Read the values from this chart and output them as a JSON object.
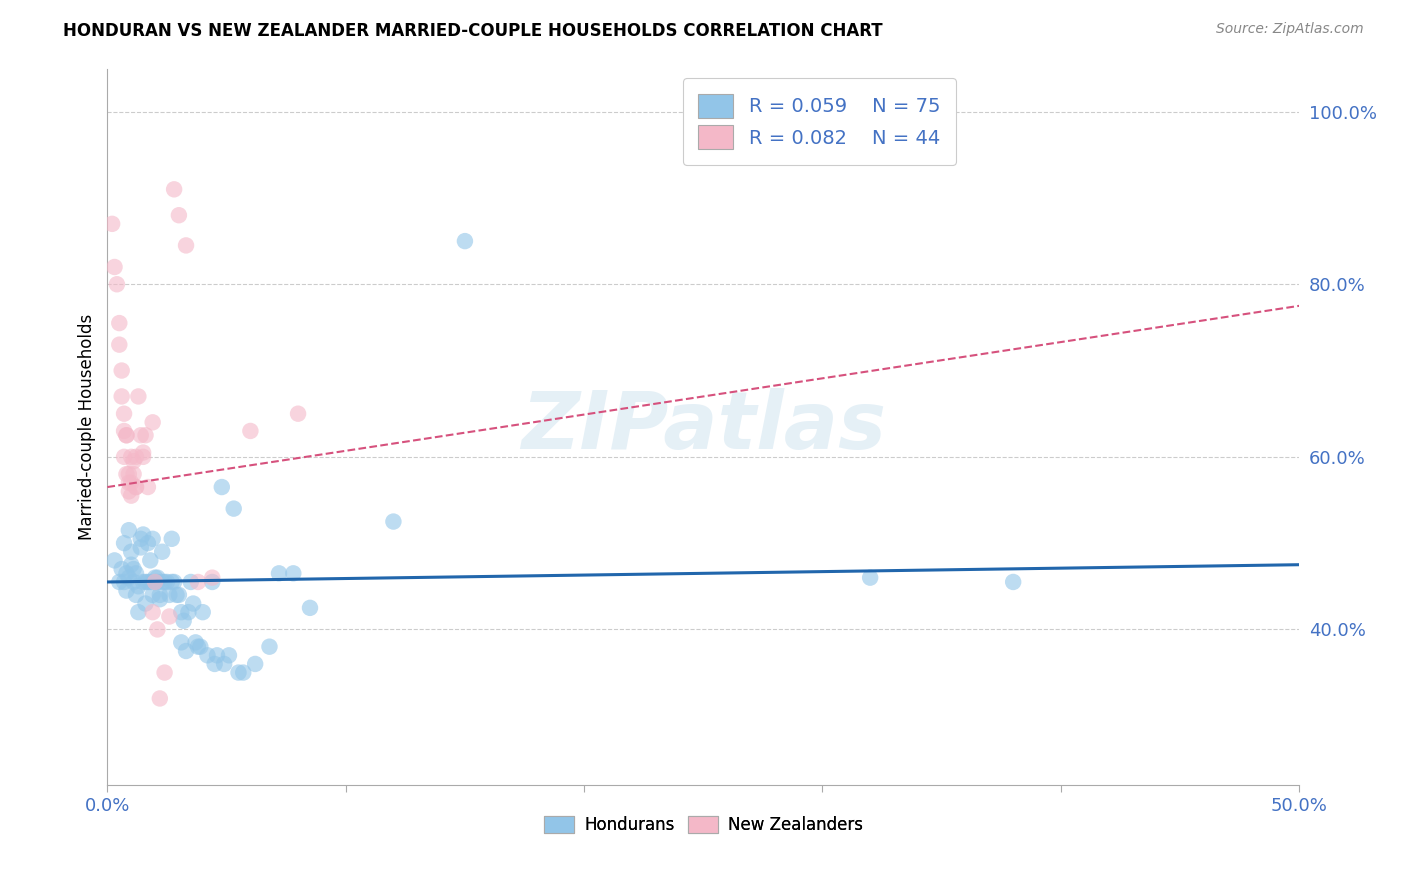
{
  "title": "HONDURAN VS NEW ZEALANDER MARRIED-COUPLE HOUSEHOLDS CORRELATION CHART",
  "source": "Source: ZipAtlas.com",
  "ylabel": "Married-couple Households",
  "ytick_labels": [
    "40.0%",
    "60.0%",
    "80.0%",
    "100.0%"
  ],
  "ytick_values": [
    0.4,
    0.6,
    0.8,
    1.0
  ],
  "xlim": [
    0.0,
    0.5
  ],
  "ylim": [
    0.22,
    1.05
  ],
  "legend_blue_R": "R = 0.059",
  "legend_blue_N": "N = 75",
  "legend_pink_R": "R = 0.082",
  "legend_pink_N": "N = 44",
  "watermark": "ZIPatlas",
  "blue_color": "#92c5e8",
  "pink_color": "#f4b8c8",
  "blue_line_color": "#2166ac",
  "pink_line_color": "#d6517d",
  "legend_text_color": "#4472c4",
  "blue_scatter": [
    [
      0.003,
      0.48
    ],
    [
      0.005,
      0.455
    ],
    [
      0.006,
      0.47
    ],
    [
      0.007,
      0.5
    ],
    [
      0.007,
      0.455
    ],
    [
      0.008,
      0.465
    ],
    [
      0.008,
      0.445
    ],
    [
      0.009,
      0.515
    ],
    [
      0.009,
      0.46
    ],
    [
      0.01,
      0.475
    ],
    [
      0.01,
      0.49
    ],
    [
      0.011,
      0.47
    ],
    [
      0.011,
      0.455
    ],
    [
      0.012,
      0.44
    ],
    [
      0.012,
      0.465
    ],
    [
      0.013,
      0.42
    ],
    [
      0.013,
      0.45
    ],
    [
      0.014,
      0.505
    ],
    [
      0.014,
      0.495
    ],
    [
      0.015,
      0.455
    ],
    [
      0.015,
      0.51
    ],
    [
      0.016,
      0.43
    ],
    [
      0.016,
      0.455
    ],
    [
      0.017,
      0.5
    ],
    [
      0.017,
      0.455
    ],
    [
      0.018,
      0.48
    ],
    [
      0.018,
      0.455
    ],
    [
      0.019,
      0.44
    ],
    [
      0.019,
      0.505
    ],
    [
      0.02,
      0.455
    ],
    [
      0.02,
      0.46
    ],
    [
      0.021,
      0.46
    ],
    [
      0.021,
      0.455
    ],
    [
      0.022,
      0.44
    ],
    [
      0.022,
      0.435
    ],
    [
      0.023,
      0.49
    ],
    [
      0.023,
      0.455
    ],
    [
      0.024,
      0.455
    ],
    [
      0.025,
      0.455
    ],
    [
      0.026,
      0.44
    ],
    [
      0.027,
      0.455
    ],
    [
      0.027,
      0.505
    ],
    [
      0.028,
      0.455
    ],
    [
      0.029,
      0.44
    ],
    [
      0.03,
      0.44
    ],
    [
      0.031,
      0.42
    ],
    [
      0.031,
      0.385
    ],
    [
      0.032,
      0.41
    ],
    [
      0.033,
      0.375
    ],
    [
      0.034,
      0.42
    ],
    [
      0.035,
      0.455
    ],
    [
      0.036,
      0.43
    ],
    [
      0.037,
      0.385
    ],
    [
      0.038,
      0.38
    ],
    [
      0.039,
      0.38
    ],
    [
      0.04,
      0.42
    ],
    [
      0.042,
      0.37
    ],
    [
      0.044,
      0.455
    ],
    [
      0.045,
      0.36
    ],
    [
      0.046,
      0.37
    ],
    [
      0.048,
      0.565
    ],
    [
      0.049,
      0.36
    ],
    [
      0.051,
      0.37
    ],
    [
      0.053,
      0.54
    ],
    [
      0.055,
      0.35
    ],
    [
      0.057,
      0.35
    ],
    [
      0.062,
      0.36
    ],
    [
      0.068,
      0.38
    ],
    [
      0.072,
      0.465
    ],
    [
      0.078,
      0.465
    ],
    [
      0.085,
      0.425
    ],
    [
      0.12,
      0.525
    ],
    [
      0.15,
      0.85
    ],
    [
      0.32,
      0.46
    ],
    [
      0.38,
      0.455
    ]
  ],
  "pink_scatter": [
    [
      0.002,
      0.87
    ],
    [
      0.003,
      0.82
    ],
    [
      0.004,
      0.8
    ],
    [
      0.005,
      0.755
    ],
    [
      0.005,
      0.73
    ],
    [
      0.006,
      0.7
    ],
    [
      0.006,
      0.67
    ],
    [
      0.007,
      0.65
    ],
    [
      0.007,
      0.63
    ],
    [
      0.007,
      0.6
    ],
    [
      0.008,
      0.625
    ],
    [
      0.008,
      0.58
    ],
    [
      0.008,
      0.625
    ],
    [
      0.009,
      0.57
    ],
    [
      0.009,
      0.56
    ],
    [
      0.009,
      0.58
    ],
    [
      0.01,
      0.555
    ],
    [
      0.01,
      0.6
    ],
    [
      0.01,
      0.57
    ],
    [
      0.011,
      0.58
    ],
    [
      0.011,
      0.595
    ],
    [
      0.012,
      0.565
    ],
    [
      0.012,
      0.565
    ],
    [
      0.012,
      0.6
    ],
    [
      0.013,
      0.67
    ],
    [
      0.014,
      0.625
    ],
    [
      0.015,
      0.6
    ],
    [
      0.015,
      0.605
    ],
    [
      0.016,
      0.625
    ],
    [
      0.017,
      0.565
    ],
    [
      0.019,
      0.64
    ],
    [
      0.019,
      0.42
    ],
    [
      0.02,
      0.455
    ],
    [
      0.021,
      0.4
    ],
    [
      0.022,
      0.32
    ],
    [
      0.024,
      0.35
    ],
    [
      0.026,
      0.415
    ],
    [
      0.028,
      0.91
    ],
    [
      0.03,
      0.88
    ],
    [
      0.033,
      0.845
    ],
    [
      0.038,
      0.455
    ],
    [
      0.044,
      0.46
    ],
    [
      0.06,
      0.63
    ],
    [
      0.08,
      0.65
    ]
  ],
  "blue_line": [
    [
      0.0,
      0.455
    ],
    [
      0.5,
      0.475
    ]
  ],
  "pink_line": [
    [
      0.0,
      0.565
    ],
    [
      0.5,
      0.775
    ]
  ]
}
